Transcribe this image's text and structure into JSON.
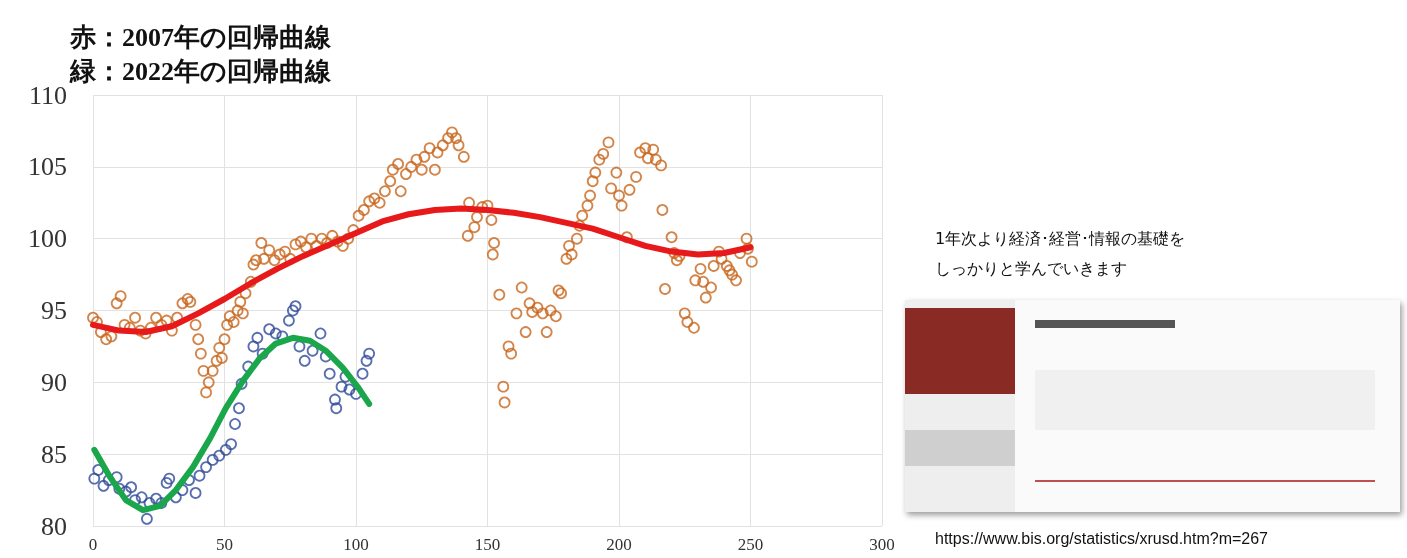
{
  "chart_data": {
    "type": "scatter",
    "annotations": [
      "赤：2007年の回帰曲線",
      "緑：2022年の回帰曲線",
      "1年次より経済･経営･情報の基礎を",
      "しっかりと学んでいきます",
      "https://www.bis.org/statistics/xrusd.htm?m=267"
    ],
    "xlim": [
      0,
      300
    ],
    "xticks": [
      0,
      50,
      100,
      150,
      200,
      250,
      300
    ],
    "ylim": [
      80,
      110
    ],
    "yticks": [
      80,
      85,
      90,
      95,
      100,
      105,
      110
    ],
    "grid": true,
    "marker": "circle",
    "series": [
      {
        "color": "#c8651b",
        "x": [
          0,
          1.5,
          3,
          5,
          7,
          9,
          10.5,
          12,
          14,
          16,
          18,
          20,
          22,
          24,
          26,
          28,
          30,
          32,
          34,
          36,
          37,
          39,
          40,
          41,
          42,
          43,
          44,
          45.5,
          47,
          48,
          49,
          50,
          51,
          52,
          53.5,
          55,
          56,
          57,
          58,
          60,
          61,
          62,
          64,
          65,
          67,
          69,
          71,
          73,
          75,
          77,
          79,
          81,
          83,
          85,
          87,
          89,
          91,
          93,
          95,
          97,
          99,
          101,
          103,
          105,
          107,
          109,
          111,
          113,
          114,
          116,
          117,
          119,
          121,
          123,
          125,
          126,
          128,
          130,
          131,
          133,
          135,
          136.5,
          138,
          139,
          141,
          142.5,
          143,
          145,
          146,
          148,
          150,
          151.5,
          152,
          152.5,
          154.5,
          156,
          156.5,
          158,
          159,
          161,
          163,
          164.5,
          166,
          167,
          169,
          171,
          172.5,
          174,
          176,
          177,
          178,
          180,
          181,
          182,
          184,
          185,
          186,
          188,
          189,
          190,
          191,
          192.5,
          194,
          196,
          197,
          199,
          200,
          201,
          203,
          204,
          206.5,
          208,
          210,
          211,
          213,
          214,
          216,
          216.5,
          217.5,
          220,
          221,
          222,
          223,
          225,
          226,
          228.5,
          229,
          231,
          232,
          233,
          235,
          236,
          238,
          239,
          241,
          242,
          243,
          244.5,
          246,
          248.5,
          249,
          250.5
        ],
        "values": [
          94.5,
          94.2,
          93.5,
          93,
          93.2,
          95.5,
          96,
          94,
          93.8,
          94.5,
          93.6,
          93.4,
          93.8,
          94.5,
          94,
          94.3,
          93.6,
          94.5,
          95.5,
          95.8,
          95.6,
          94,
          93,
          92,
          90.8,
          89.3,
          90,
          90.8,
          91.5,
          92.4,
          91.7,
          93,
          94,
          94.6,
          94.2,
          95,
          95.6,
          94.8,
          96.2,
          97,
          98.2,
          98.5,
          99.7,
          98.6,
          99.2,
          98.5,
          98.9,
          99.1,
          98.6,
          99.6,
          99.8,
          99.4,
          100,
          99.5,
          100,
          99.7,
          100.2,
          99.8,
          99.5,
          100,
          100.6,
          101.6,
          102,
          102.6,
          102.8,
          102.5,
          103.3,
          104,
          104.8,
          105.2,
          103.3,
          104.5,
          105,
          105.5,
          104.8,
          105.7,
          106.3,
          104.8,
          106,
          106.5,
          107,
          107.4,
          107,
          106.5,
          105.7,
          100.2,
          102.5,
          100.8,
          101.5,
          102.2,
          102.3,
          101.3,
          98.9,
          99.7,
          96.1,
          89.7,
          88.6,
          92.5,
          92,
          94.8,
          96.6,
          93.5,
          95.5,
          94.9,
          95.2,
          94.8,
          93.5,
          95,
          94.6,
          96.4,
          96.2,
          98.6,
          99.5,
          98.9,
          100,
          100.9,
          101.6,
          102.3,
          103,
          104,
          104.6,
          105.5,
          105.9,
          106.7,
          103.5,
          104.6,
          103,
          102.3,
          100.1,
          103.4,
          104.3,
          106,
          106.3,
          105.6,
          106.2,
          105.5,
          105.1,
          102,
          96.5,
          100.1,
          99,
          98.5,
          98.8,
          94.8,
          94.2,
          93.8,
          97.1,
          97.9,
          97,
          95.9,
          96.6,
          98.1,
          99.1,
          98.6,
          98.1,
          97.8,
          97.5,
          97.1,
          99,
          100,
          99.3,
          98.4
        ]
      },
      {
        "color": "#2e4a9a",
        "x": [
          0.5,
          2,
          4,
          6,
          9,
          10,
          12.5,
          14.5,
          16,
          18.5,
          20.5,
          21.5,
          24,
          26,
          28,
          29,
          31.5,
          34,
          36.5,
          39,
          40.5,
          43,
          45.5,
          48,
          50.5,
          52.5,
          54,
          55.5,
          56.5,
          59,
          61,
          62.5,
          64.5,
          67,
          69.5,
          72,
          74.5,
          76,
          77,
          78.5,
          80.5,
          83.5,
          86.5,
          88.5,
          90,
          92,
          92.5,
          94.5,
          96,
          97.5,
          100,
          102.5,
          104,
          105
        ],
        "values": [
          83.3,
          83.9,
          82.8,
          83.2,
          83.4,
          82.6,
          82.4,
          82.7,
          81.8,
          82,
          80.5,
          81.6,
          81.9,
          81.6,
          83,
          83.3,
          82,
          82.5,
          83.2,
          82.3,
          83.5,
          84.1,
          84.6,
          84.9,
          85.3,
          85.7,
          87.1,
          88.2,
          89.9,
          91.1,
          92.5,
          93.1,
          92,
          93.7,
          93.4,
          93.2,
          94.3,
          95,
          95.3,
          92.5,
          91.5,
          92.2,
          93.4,
          91.8,
          90.6,
          88.8,
          88.2,
          89.7,
          90.4,
          89.5,
          89.2,
          90.6,
          91.5,
          92
        ]
      },
      {
        "type": "line",
        "color": "#e8191b",
        "marker": "none",
        "x": [
          0,
          10,
          20,
          30,
          40,
          50,
          60,
          70,
          80,
          90,
          100,
          110,
          120,
          130,
          140,
          150,
          160,
          170,
          180,
          190,
          200,
          210,
          220,
          230,
          240,
          250
        ],
        "values": [
          94,
          93.6,
          93.5,
          93.9,
          94.8,
          95.8,
          96.9,
          97.9,
          98.8,
          99.6,
          100.4,
          101.2,
          101.7,
          102,
          102.1,
          102,
          101.8,
          101.5,
          101.1,
          100.7,
          100.1,
          99.5,
          99.1,
          98.9,
          99,
          99.4
        ]
      },
      {
        "type": "line",
        "color": "#1aa64a",
        "marker": "none",
        "x": [
          0.5,
          6.5,
          12.5,
          19,
          25.5,
          31.5,
          38,
          44.5,
          50.5,
          57,
          63.5,
          69.5,
          76,
          82.5,
          88.5,
          95,
          101,
          105
        ],
        "values": [
          85.3,
          83.4,
          81.8,
          81.1,
          81.4,
          82.5,
          84.1,
          86.1,
          88.2,
          90.1,
          91.7,
          92.7,
          93.1,
          92.9,
          92.2,
          91,
          89.6,
          88.5
        ]
      }
    ]
  }
}
